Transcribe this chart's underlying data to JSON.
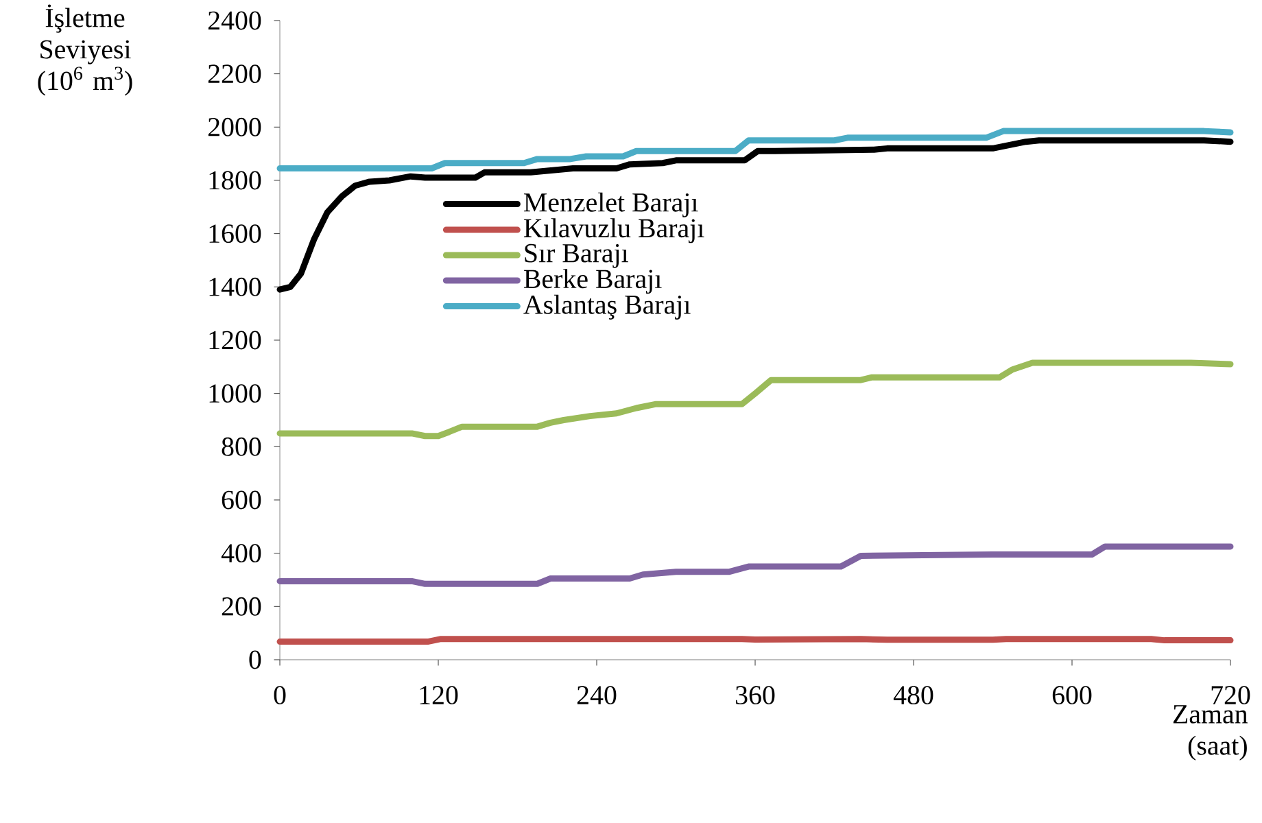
{
  "chart_data": {
    "type": "line",
    "ylabel": "İşletme Seviyesi (10$^{6}$ m$^{3}$)",
    "xlabel": "Zaman (saat)",
    "xlim": [
      0,
      720
    ],
    "xticks": [
      0,
      120,
      240,
      360,
      480,
      600,
      720
    ],
    "ylim": [
      0,
      2400
    ],
    "yticks": [
      0,
      200,
      400,
      600,
      800,
      1000,
      1200,
      1400,
      1600,
      1800,
      2000,
      2200,
      2400
    ],
    "grid": false,
    "legend": "left",
    "marker": "none",
    "line_style": "solid",
    "series": [
      {
        "name": "Menzelet Barajı",
        "color": "#000000",
        "x": [
          0,
          8,
          16,
          26,
          36,
          47,
          57,
          68,
          83,
          99,
          110,
          125,
          148,
          155,
          190,
          222,
          255,
          265,
          290,
          300,
          352,
          362,
          375,
          450,
          460,
          540,
          565,
          575,
          700,
          720
        ],
        "values": [
          1390,
          1400,
          1450,
          1580,
          1680,
          1740,
          1780,
          1795,
          1800,
          1815,
          1810,
          1810,
          1810,
          1830,
          1830,
          1845,
          1845,
          1860,
          1865,
          1875,
          1875,
          1910,
          1910,
          1915,
          1920,
          1920,
          1945,
          1950,
          1950,
          1945
        ]
      },
      {
        "name": "Kılavuzlu Barajı",
        "color": "#c0504d",
        "x": [
          0,
          112,
          122,
          350,
          360,
          440,
          460,
          540,
          550,
          660,
          670,
          720
        ],
        "values": [
          68,
          68,
          78,
          78,
          76,
          78,
          75,
          75,
          78,
          78,
          73,
          73
        ]
      },
      {
        "name": "Sır Barajı",
        "color": "#9bbb59",
        "x": [
          0,
          100,
          110,
          120,
          128,
          138,
          195,
          205,
          215,
          235,
          255,
          270,
          285,
          350,
          360,
          372,
          440,
          448,
          545,
          555,
          570,
          690,
          720
        ],
        "values": [
          850,
          850,
          840,
          840,
          855,
          875,
          875,
          890,
          900,
          915,
          925,
          945,
          960,
          960,
          1000,
          1050,
          1050,
          1060,
          1060,
          1090,
          1115,
          1115,
          1110
        ]
      },
      {
        "name": "Berke Barajı",
        "color": "#8064a2",
        "x": [
          0,
          100,
          110,
          195,
          205,
          265,
          275,
          300,
          340,
          355,
          425,
          440,
          540,
          548,
          615,
          625,
          720
        ],
        "values": [
          295,
          295,
          285,
          285,
          305,
          305,
          320,
          330,
          330,
          350,
          350,
          390,
          395,
          395,
          395,
          425,
          425
        ]
      },
      {
        "name": "Aslantaş Barajı",
        "color": "#4bacc6",
        "x": [
          0,
          115,
          125,
          185,
          195,
          220,
          232,
          260,
          270,
          345,
          355,
          420,
          430,
          535,
          548,
          700,
          720
        ],
        "values": [
          1845,
          1845,
          1865,
          1865,
          1880,
          1880,
          1890,
          1890,
          1910,
          1910,
          1950,
          1950,
          1960,
          1960,
          1985,
          1985,
          1980
        ]
      }
    ]
  }
}
